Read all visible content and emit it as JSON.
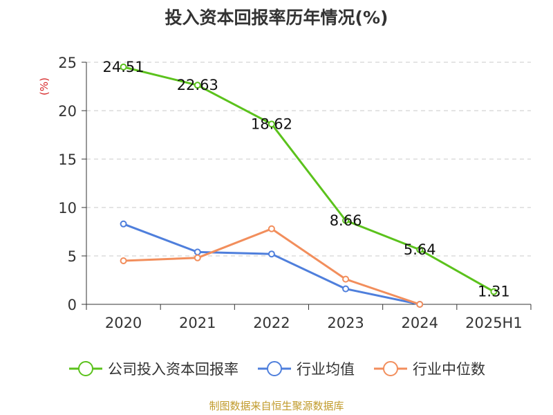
{
  "chart_data": {
    "type": "line",
    "title": "投入资本回报率历年情况(%)",
    "ylabel": "(%)",
    "xlabel": "",
    "categories": [
      "2020",
      "2021",
      "2022",
      "2023",
      "2024",
      "2025H1"
    ],
    "ylim": [
      0,
      25
    ],
    "yticks": [
      0,
      5,
      10,
      15,
      20,
      25
    ],
    "grid": "horizontal dashed",
    "legend_position": "bottom",
    "series": [
      {
        "name": "公司投入资本回报率",
        "color": "#5bc21c",
        "values": [
          24.51,
          22.63,
          18.62,
          8.66,
          5.64,
          1.31
        ],
        "labels": true
      },
      {
        "name": "行业均值",
        "color": "#4f7fdc",
        "values": [
          8.3,
          5.4,
          5.2,
          1.6,
          0.0,
          null
        ],
        "labels": false
      },
      {
        "name": "行业中位数",
        "color": "#f28e5c",
        "values": [
          4.5,
          4.8,
          7.8,
          2.6,
          0.0,
          null
        ],
        "labels": false
      }
    ]
  },
  "source_note": "制图数据来自恒生聚源数据库"
}
